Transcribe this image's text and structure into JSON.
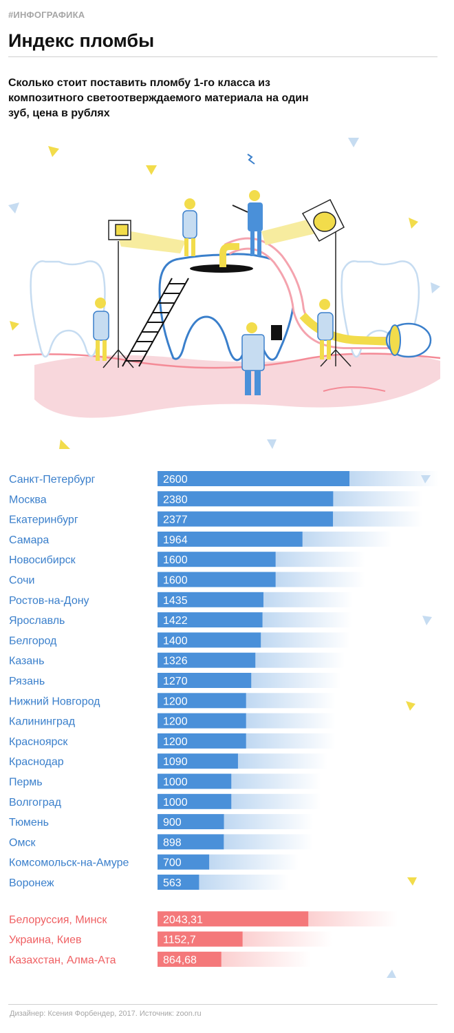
{
  "header": {
    "tag": "#ИНФОГРАФИКА",
    "title": "Индекс пломбы",
    "subtitle": "Сколько стоит поставить пломбу 1-го класса из композитного светоотверждаемого материала на один зуб, цена в рублях"
  },
  "colors": {
    "russia_bar": "#4a90d9",
    "russia_label": "#3a7fcb",
    "foreign_bar": "#f4787a",
    "foreign_label": "#ef5f62",
    "accent_yellow": "#f2dc4b",
    "accent_blue": "#c6dcf1"
  },
  "chart_data": {
    "type": "bar",
    "orientation": "horizontal",
    "series": [
      {
        "group": "russia",
        "categories": [
          "Санкт-Петербург",
          "Москва",
          "Екатеринбург",
          "Самара",
          "Новосибирск",
          "Сочи",
          "Ростов-на-Дону",
          "Ярославль",
          "Белгород",
          "Казань",
          "Рязань",
          "Нижний Новгород",
          "Калининград",
          "Красноярск",
          "Краснодар",
          "Пермь",
          "Волгоград",
          "Тюмень",
          "Омск",
          "Комсомольск-на-Амуре",
          "Воронеж"
        ],
        "values": [
          2600,
          2380,
          2377,
          1964,
          1600,
          1600,
          1435,
          1422,
          1400,
          1326,
          1270,
          1200,
          1200,
          1200,
          1090,
          1000,
          1000,
          900,
          898,
          700,
          563
        ],
        "labels": [
          "2600",
          "2380",
          "2377",
          "1964",
          "1600",
          "1600",
          "1435",
          "1422",
          "1400",
          "1326",
          "1270",
          "1200",
          "1200",
          "1200",
          "1090",
          "1000",
          "1000",
          "900",
          "898",
          "700",
          "563"
        ]
      },
      {
        "group": "foreign",
        "categories": [
          "Белоруссия, Минск",
          "Украина, Киев",
          "Казахстан, Алма-Ата"
        ],
        "values": [
          2043.31,
          1152.7,
          864.68
        ],
        "labels": [
          "2043,31",
          "1152,7",
          "864,68"
        ]
      }
    ],
    "xlim": [
      0,
      2600
    ]
  },
  "footer": {
    "credit": "Дизайнер: Ксения Форбендер, 2017. Источник: zoon.ru"
  }
}
